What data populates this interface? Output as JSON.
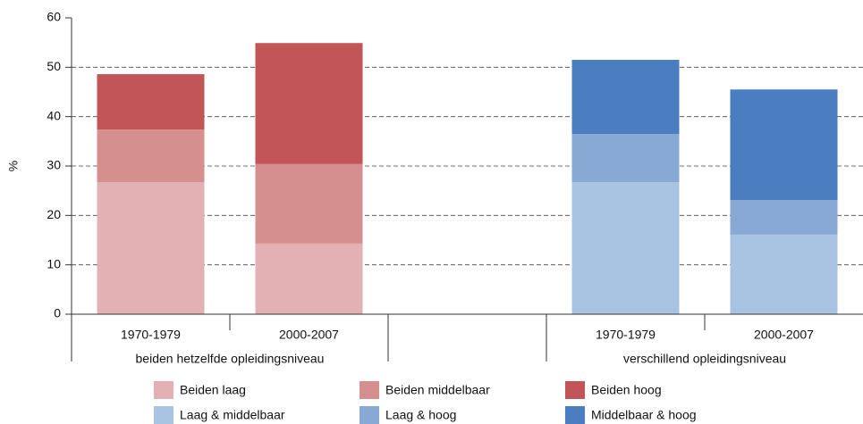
{
  "chart_data": {
    "type": "stacked_bar",
    "y_label": "%",
    "categories": [
      "1970-1979",
      "2000-2007",
      null,
      "1970-1979",
      "2000-2007"
    ],
    "groups": [
      {
        "label": "beiden hetzelfde opleidingsniveau",
        "start": 0,
        "end": 1
      },
      {
        "label": "verschillend opleidingsniveau",
        "start": 3,
        "end": 4
      }
    ],
    "series": [
      {
        "name": "Beiden laag",
        "color": "#e3b1b3",
        "values": [
          26.7,
          14.3,
          null,
          null,
          null
        ]
      },
      {
        "name": "Beiden middelbaar",
        "color": "#d68f8f",
        "values": [
          10.7,
          16.1,
          null,
          null,
          null
        ]
      },
      {
        "name": "Beiden hoog",
        "color": "#c15557",
        "values": [
          11.2,
          24.5,
          null,
          null,
          null
        ]
      },
      {
        "name": "Laag & middelbaar",
        "color": "#a9c3e2",
        "values": [
          null,
          null,
          null,
          26.7,
          16.1
        ]
      },
      {
        "name": "Laag & hoog",
        "color": "#87a9d4",
        "values": [
          null,
          null,
          null,
          9.8,
          7.0
        ]
      },
      {
        "name": "Middelbaar & hoog",
        "color": "#4a7ec1",
        "values": [
          null,
          null,
          null,
          15.0,
          22.4
        ]
      }
    ],
    "ylim": [
      0,
      60
    ],
    "yticks": [
      0,
      10,
      20,
      30,
      40,
      50,
      60
    ],
    "grid": true
  }
}
